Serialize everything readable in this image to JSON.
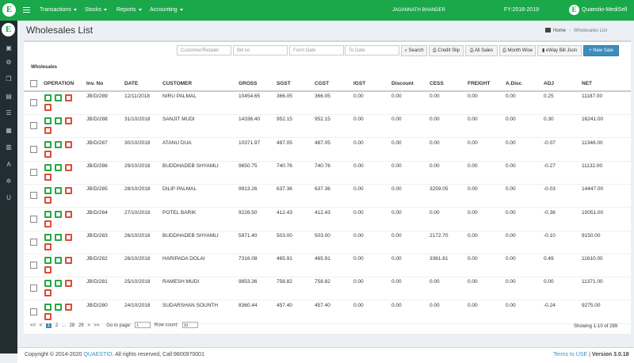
{
  "app": {
    "logo_letter": "E",
    "menu": [
      {
        "label": "Transactions"
      },
      {
        "label": "Stocks"
      },
      {
        "label": "Reports"
      },
      {
        "label": "Accounting"
      }
    ],
    "user_name": "JAGANNATH BHANDER",
    "fy": "FY:2018-2019",
    "brand_name": "Quaestio-MediSell"
  },
  "sidebar": {
    "items": [
      {
        "icon": "dashboard-icon",
        "glyph": "▣"
      },
      {
        "icon": "settings-icon",
        "glyph": "⚙"
      },
      {
        "icon": "layers-icon",
        "glyph": "❒"
      },
      {
        "icon": "document-icon",
        "glyph": "▤"
      },
      {
        "icon": "list-icon",
        "glyph": "☰"
      },
      {
        "icon": "table-icon",
        "glyph": "▦"
      },
      {
        "icon": "bank-icon",
        "glyph": "▥"
      },
      {
        "icon": "font-icon",
        "glyph": "A"
      },
      {
        "icon": "gear-icon",
        "glyph": "✲"
      },
      {
        "icon": "user-icon",
        "glyph": "U"
      }
    ]
  },
  "page": {
    "title": "Wholesales List",
    "breadcrumb": {
      "home": "Home",
      "current": "Wholesales List"
    },
    "section_label": "Wholesales"
  },
  "filters": {
    "customer_placeholder": "Customer/Retailer",
    "bill_placeholder": "Bill no",
    "from_placeholder": "Form Date",
    "to_placeholder": "To Date"
  },
  "buttons": {
    "search": "Search",
    "credit_slip": "Credit Slip",
    "all_sales": "All Sales",
    "month_wise": "Month Wise",
    "eway": "eWay Bill Json",
    "new_sale": "+ New Sale"
  },
  "table": {
    "headers": [
      "OPERATION",
      "Inv. No",
      "DATE",
      "CUSTOMER",
      "GROSS",
      "SGST",
      "CGST",
      "IGST",
      "Discount",
      "CESS",
      "FREIGHT",
      "A.Disc",
      "ADJ",
      "NET"
    ],
    "rows": [
      {
        "inv": "JB/D/289",
        "date": "12/11/2018",
        "customer": "NIRU PALMAL",
        "gross": "10454.65",
        "sgst": "366.05",
        "cgst": "366.05",
        "igst": "0.00",
        "discount": "0.00",
        "cess": "0.00",
        "freight": "0.00",
        "adisc": "0.00",
        "adj": "0.25",
        "net": "11187.00"
      },
      {
        "inv": "JB/D/288",
        "date": "31/10/2018",
        "customer": "SANJIT MUDI",
        "gross": "14336.40",
        "sgst": "952.15",
        "cgst": "952.15",
        "igst": "0.00",
        "discount": "0.00",
        "cess": "0.00",
        "freight": "0.00",
        "adisc": "0.00",
        "adj": "0.30",
        "net": "16241.00"
      },
      {
        "inv": "JB/D/287",
        "date": "30/10/2018",
        "customer": "ATANU DUA",
        "gross": "10371.97",
        "sgst": "487.05",
        "cgst": "487.05",
        "igst": "0.00",
        "discount": "0.00",
        "cess": "0.00",
        "freight": "0.00",
        "adisc": "0.00",
        "adj": "-0.07",
        "net": "11346.00"
      },
      {
        "inv": "JB/D/286",
        "date": "29/10/2018",
        "customer": "BUDDHADEB SHYAMLI",
        "gross": "9650.75",
        "sgst": "740.76",
        "cgst": "740.76",
        "igst": "0.00",
        "discount": "0.00",
        "cess": "0.00",
        "freight": "0.00",
        "adisc": "0.00",
        "adj": "-0.27",
        "net": "11132.00"
      },
      {
        "inv": "JB/D/285",
        "date": "28/10/2018",
        "customer": "DILIP PALMAL",
        "gross": "9913.26",
        "sgst": "637.36",
        "cgst": "637.36",
        "igst": "0.00",
        "discount": "0.00",
        "cess": "3259.05",
        "freight": "0.00",
        "adisc": "0.00",
        "adj": "-0.03",
        "net": "14447.00"
      },
      {
        "inv": "JB/D/284",
        "date": "27/10/2018",
        "customer": "POTEL BARIK",
        "gross": "9226.50",
        "sgst": "412.43",
        "cgst": "412.43",
        "igst": "0.00",
        "discount": "0.00",
        "cess": "0.00",
        "freight": "0.00",
        "adisc": "0.00",
        "adj": "-0.36",
        "net": "10051.00"
      },
      {
        "inv": "JB/D/283",
        "date": "26/10/2018",
        "customer": "BUDDHADEB SHYAMLI",
        "gross": "5971.40",
        "sgst": "503.00",
        "cgst": "503.00",
        "igst": "0.00",
        "discount": "0.00",
        "cess": "2172.70",
        "freight": "0.00",
        "adisc": "0.00",
        "adj": "-0.10",
        "net": "9150.00"
      },
      {
        "inv": "JB/D/282",
        "date": "26/10/2018",
        "customer": "HARIPADA DOLAI",
        "gross": "7316.08",
        "sgst": "465.91",
        "cgst": "465.91",
        "igst": "0.00",
        "discount": "0.00",
        "cess": "3361.61",
        "freight": "0.00",
        "adisc": "0.00",
        "adj": "0.49",
        "net": "11610.00"
      },
      {
        "inv": "JB/D/281",
        "date": "25/10/2018",
        "customer": "RAMESH MUDI",
        "gross": "9853.36",
        "sgst": "758.82",
        "cgst": "758.82",
        "igst": "0.00",
        "discount": "0.00",
        "cess": "0.00",
        "freight": "0.00",
        "adisc": "0.00",
        "adj": "0.00",
        "net": "11371.00"
      },
      {
        "inv": "JB/D/280",
        "date": "24/10/2018",
        "customer": "SUDARSHAN SOUNTH",
        "gross": "8360.44",
        "sgst": "457.40",
        "cgst": "457.40",
        "igst": "0.00",
        "discount": "0.00",
        "cess": "0.00",
        "freight": "0.00",
        "adisc": "0.00",
        "adj": "-0.24",
        "net": "9275.00"
      }
    ]
  },
  "pager": {
    "first": "<<",
    "prev": "<",
    "pages": [
      "1",
      "2",
      "...",
      "28",
      "29"
    ],
    "next": ">",
    "last": ">>",
    "goto_label": "Go to page:",
    "goto_value": "1",
    "row_count_label": "Row count:",
    "row_count_value": "10",
    "showing": "Showing 1-10 of 289"
  },
  "footer": {
    "copyright_prefix": "Copyright © 2014-2020",
    "company_link": "QUAESTIO",
    "copyright_suffix": ". All rights reserved, Call:9800970001",
    "terms_link": "Terms to USE",
    "version": "Version 3.0.18"
  },
  "colors": {
    "brand_green": "#1aa84a",
    "sidebar": "#222d32",
    "primary": "#3c8dbc",
    "danger": "#dd4b39",
    "success": "#28a745"
  }
}
